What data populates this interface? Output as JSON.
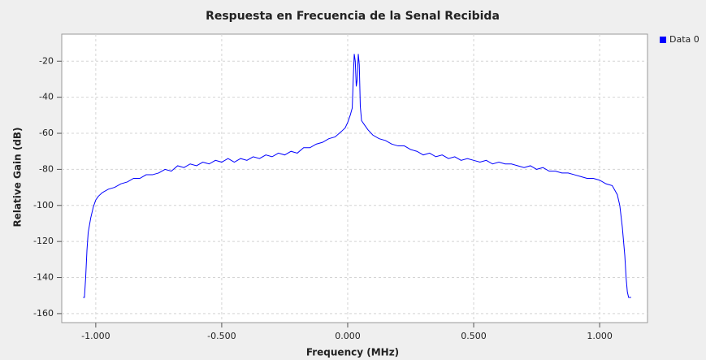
{
  "chart_data": {
    "type": "line",
    "title": "Respuesta en Frecuencia de la Senal Recibida",
    "xlabel": "Frequency (MHz)",
    "ylabel": "Relative Gain (dB)",
    "x": [
      -1.05,
      -1.045,
      -1.04,
      -1.035,
      -1.03,
      -1.02,
      -1.01,
      -1.0,
      -0.99,
      -0.975,
      -0.95,
      -0.925,
      -0.9,
      -0.875,
      -0.85,
      -0.825,
      -0.8,
      -0.775,
      -0.75,
      -0.725,
      -0.7,
      -0.675,
      -0.65,
      -0.625,
      -0.6,
      -0.575,
      -0.55,
      -0.525,
      -0.5,
      -0.475,
      -0.45,
      -0.425,
      -0.4,
      -0.375,
      -0.35,
      -0.325,
      -0.3,
      -0.275,
      -0.25,
      -0.225,
      -0.2,
      -0.175,
      -0.15,
      -0.125,
      -0.1,
      -0.075,
      -0.05,
      -0.025,
      -0.01,
      0.0,
      0.01,
      0.018,
      0.022,
      0.026,
      0.03,
      0.034,
      0.038,
      0.042,
      0.046,
      0.05,
      0.055,
      0.065,
      0.08,
      0.1,
      0.125,
      0.15,
      0.175,
      0.2,
      0.225,
      0.25,
      0.275,
      0.3,
      0.325,
      0.35,
      0.375,
      0.4,
      0.425,
      0.45,
      0.475,
      0.5,
      0.525,
      0.55,
      0.575,
      0.6,
      0.625,
      0.65,
      0.675,
      0.7,
      0.725,
      0.75,
      0.775,
      0.8,
      0.825,
      0.85,
      0.875,
      0.9,
      0.925,
      0.95,
      0.975,
      1.0,
      1.025,
      1.05,
      1.07,
      1.08,
      1.09,
      1.1,
      1.105,
      1.11,
      1.115,
      1.125
    ],
    "series": [
      {
        "name": "Data 0",
        "color": "#0000ff",
        "values": [
          -151,
          -151,
          -140,
          -125,
          -115,
          -107,
          -101,
          -97,
          -95,
          -93,
          -91,
          -90,
          -88,
          -87,
          -85,
          -85,
          -83,
          -83,
          -82,
          -80,
          -81,
          -78,
          -79,
          -77,
          -78,
          -76,
          -77,
          -75,
          -76,
          -74,
          -76,
          -74,
          -75,
          -73,
          -74,
          -72,
          -73,
          -71,
          -72,
          -70,
          -71,
          -68,
          -68,
          -66,
          -65,
          -63,
          -62,
          -59,
          -57,
          -54,
          -50,
          -46,
          -30,
          -16,
          -20,
          -34,
          -30,
          -16,
          -22,
          -45,
          -53,
          -55,
          -58,
          -61,
          -63,
          -64,
          -66,
          -67,
          -67,
          -69,
          -70,
          -72,
          -71,
          -73,
          -72,
          -74,
          -73,
          -75,
          -74,
          -75,
          -76,
          -75,
          -77,
          -76,
          -77,
          -77,
          -78,
          -79,
          -78,
          -80,
          -79,
          -81,
          -81,
          -82,
          -82,
          -83,
          -84,
          -85,
          -85,
          -86,
          -88,
          -89,
          -94,
          -100,
          -112,
          -128,
          -140,
          -148,
          -151,
          -151
        ]
      }
    ],
    "xlim": [
      -1.135,
      1.19
    ],
    "ylim": [
      -165,
      -5
    ],
    "xticks": [
      {
        "value": -1,
        "label": "-1.000"
      },
      {
        "value": -0.5,
        "label": "-0.500"
      },
      {
        "value": 0,
        "label": "0.000"
      },
      {
        "value": 0.5,
        "label": "0.500"
      },
      {
        "value": 1,
        "label": "1.000"
      }
    ],
    "yticks": [
      -20,
      -40,
      -60,
      -80,
      -100,
      -120,
      -140,
      -160
    ],
    "grid": true,
    "legend": "right"
  }
}
